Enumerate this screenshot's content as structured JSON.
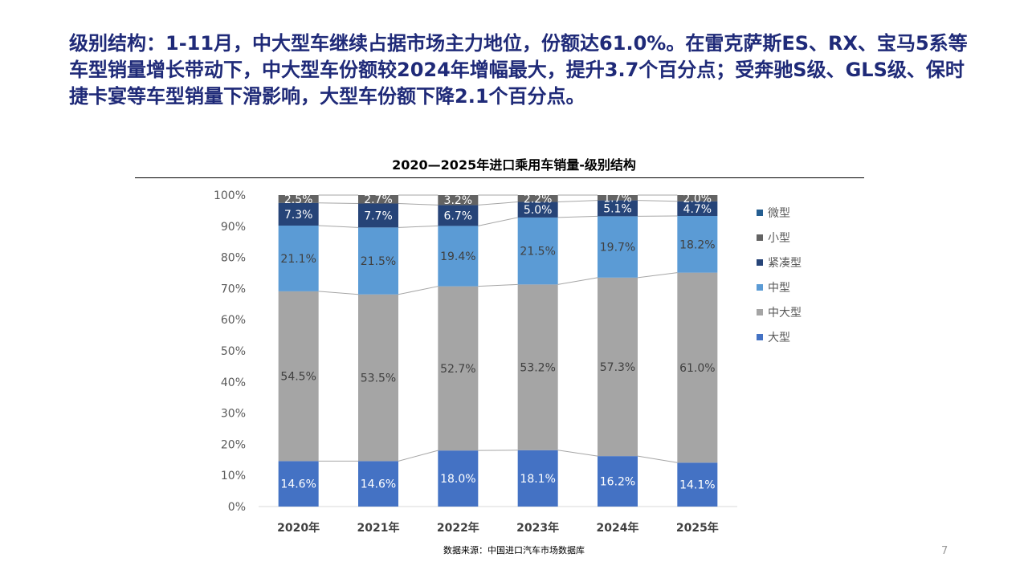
{
  "headline": "级别结构：1-11月，中大型车继续占据市场主力地位，份额达61.0%。在雷克萨斯ES、RX、宝马5系等车型销量增长带动下，中大型车份额较2024年增幅最大，提升3.7个百分点；受奔驰S级、GLS级、保时捷卡宴等车型销量下滑影响，大型车份额下降2.1个百分点。",
  "source": "数据来源：中国进口汽车市场数据库",
  "page_number": "7",
  "chart_data": {
    "type": "bar",
    "stacked": true,
    "title": "2020—2025年进口乘用车销量-级别结构",
    "categories": [
      "2020年",
      "2021年",
      "2022年",
      "2023年",
      "2024年",
      "2025年"
    ],
    "ylim": [
      0,
      100
    ],
    "yticks": [
      "0%",
      "10%",
      "20%",
      "30%",
      "40%",
      "50%",
      "60%",
      "70%",
      "80%",
      "90%",
      "100%"
    ],
    "legend_position": "right",
    "series": [
      {
        "name": "大型",
        "color": "#4472c4",
        "label_color": "#ffffff",
        "values": [
          14.6,
          14.6,
          18.0,
          18.1,
          16.2,
          14.1
        ]
      },
      {
        "name": "中大型",
        "color": "#a5a5a5",
        "label_color": "#404040",
        "values": [
          54.5,
          53.5,
          52.7,
          53.2,
          57.3,
          61.0
        ]
      },
      {
        "name": "中型",
        "color": "#5b9bd5",
        "label_color": "#404040",
        "values": [
          21.1,
          21.5,
          19.4,
          21.5,
          19.7,
          18.2
        ]
      },
      {
        "name": "紧凑型",
        "color": "#264478",
        "label_color": "#ffffff",
        "values": [
          7.3,
          7.7,
          6.7,
          5.0,
          5.1,
          4.7
        ]
      },
      {
        "name": "小型",
        "color": "#636363",
        "label_color": "#ffffff",
        "values": [
          2.5,
          2.7,
          3.2,
          2.2,
          1.7,
          2.0
        ]
      },
      {
        "name": "微型",
        "color": "#255e91",
        "label_color": "#ffffff",
        "values": [
          0,
          0,
          0,
          0,
          0,
          0
        ]
      }
    ]
  }
}
